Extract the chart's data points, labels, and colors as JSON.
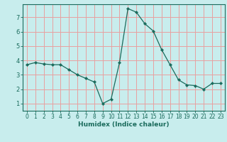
{
  "x": [
    0,
    1,
    2,
    3,
    4,
    5,
    6,
    7,
    8,
    9,
    10,
    11,
    12,
    13,
    14,
    15,
    16,
    17,
    18,
    19,
    20,
    21,
    22,
    23
  ],
  "y": [
    3.7,
    3.85,
    3.75,
    3.7,
    3.7,
    3.35,
    3.0,
    2.75,
    2.5,
    1.0,
    1.3,
    3.85,
    7.6,
    7.35,
    6.55,
    6.05,
    4.75,
    3.7,
    2.65,
    2.3,
    2.25,
    2.0,
    2.4,
    2.4
  ],
  "line_color": "#1a6b5c",
  "marker": "D",
  "marker_size": 2.2,
  "background_color": "#c8eded",
  "grid_color": "#e8a0a0",
  "axis_color": "#1a6b5c",
  "xlabel": "Humidex (Indice chaleur)",
  "xlim": [
    -0.5,
    23.5
  ],
  "ylim": [
    0.5,
    7.9
  ],
  "yticks": [
    1,
    2,
    3,
    4,
    5,
    6,
    7
  ],
  "xticks": [
    0,
    1,
    2,
    3,
    4,
    5,
    6,
    7,
    8,
    9,
    10,
    11,
    12,
    13,
    14,
    15,
    16,
    17,
    18,
    19,
    20,
    21,
    22,
    23
  ],
  "xlabel_fontsize": 6.5,
  "tick_fontsize": 5.5
}
